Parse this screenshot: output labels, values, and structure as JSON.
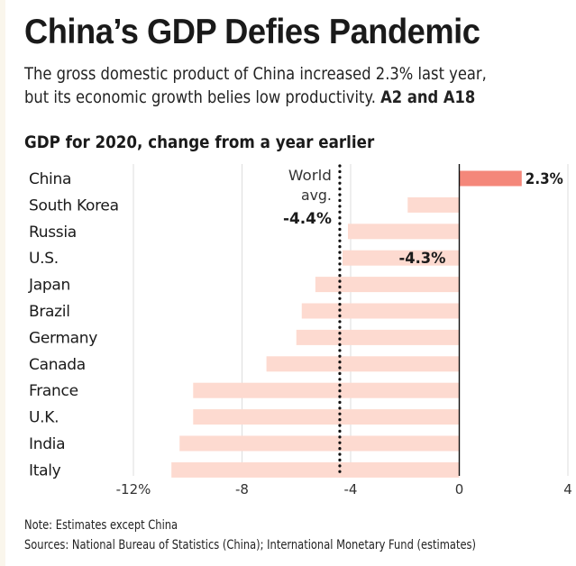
{
  "header": {
    "title": "China’s GDP Defies Pandemic",
    "subtitle_line1": "The gross domestic product of China increased 2.3% last year,",
    "subtitle_line2": "but its economic growth belies low productivity.",
    "subtitle_ref": "A2 and A18"
  },
  "footer": {
    "note": "Note: Estimates except China",
    "sources": "Sources: National Bureau of Statistics (China); International Monetary Fund (estimates)"
  },
  "colors": {
    "highlight": "#f4877a",
    "bar": "#fddad0",
    "grid": "#dddddd",
    "text": "#1a1a1a"
  },
  "chart_data": {
    "type": "bar",
    "orientation": "horizontal",
    "title": "GDP for 2020, change from a year earlier",
    "xlabel": "",
    "ylabel": "",
    "xlim": [
      -12,
      4
    ],
    "x_ticks": [
      -12,
      -8,
      -4,
      0,
      4
    ],
    "x_tick_labels": [
      "-12%",
      "-8",
      "-4",
      "0",
      "4"
    ],
    "grid": true,
    "categories": [
      "China",
      "South Korea",
      "Russia",
      "U.S.",
      "Japan",
      "Brazil",
      "Germany",
      "Canada",
      "France",
      "U.K.",
      "India",
      "Italy"
    ],
    "values": [
      2.3,
      -1.9,
      -4.1,
      -4.3,
      -5.3,
      -5.8,
      -6.0,
      -7.1,
      -9.8,
      -9.8,
      -10.3,
      -10.6
    ],
    "highlight": "China",
    "data_labels": [
      {
        "category": "China",
        "text": "2.3%"
      },
      {
        "category": "U.S.",
        "text": "-4.3%"
      }
    ],
    "reference_line": {
      "value": -4.4,
      "label_line1": "World",
      "label_line2": "avg.",
      "label_value": "-4.4%",
      "style": "dotted"
    }
  }
}
